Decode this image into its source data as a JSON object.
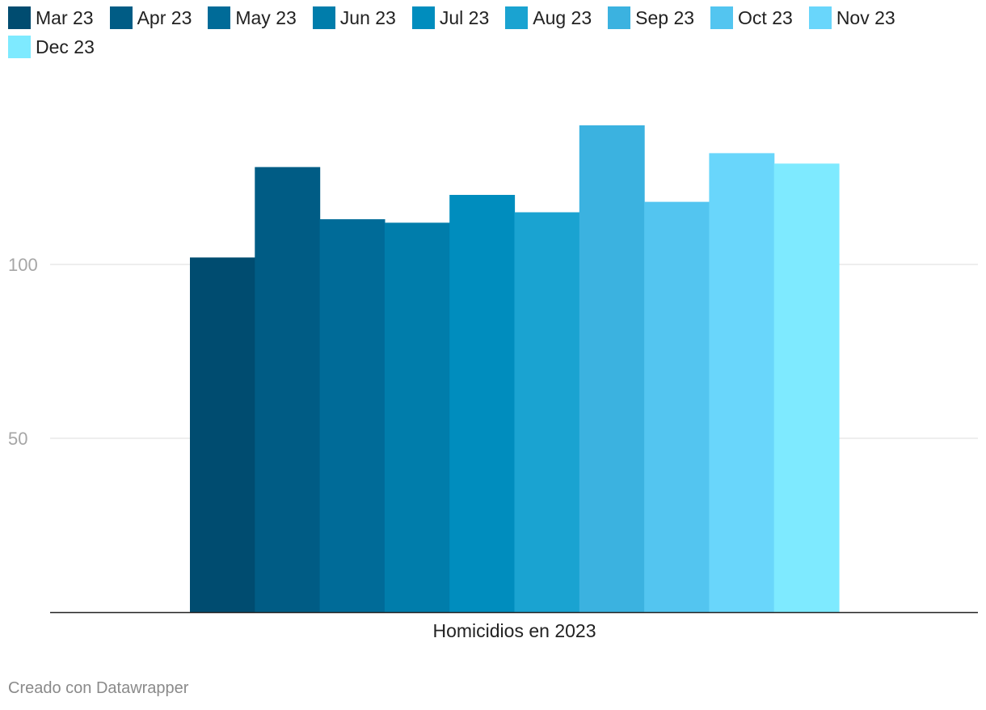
{
  "chart_data": {
    "type": "bar",
    "title": "",
    "xlabel": "",
    "ylabel": "",
    "categories": [
      "Homicidios en 2023"
    ],
    "series": [
      {
        "name": "Mar 23",
        "values": [
          102
        ],
        "color": "#004c70"
      },
      {
        "name": "Apr 23",
        "values": [
          128
        ],
        "color": "#005c85"
      },
      {
        "name": "May 23",
        "values": [
          113
        ],
        "color": "#006b98"
      },
      {
        "name": "Jun 23",
        "values": [
          112
        ],
        "color": "#007dab"
      },
      {
        "name": "Jul 23",
        "values": [
          120
        ],
        "color": "#008dbe"
      },
      {
        "name": "Aug 23",
        "values": [
          115
        ],
        "color": "#1aa3d1"
      },
      {
        "name": "Sep 23",
        "values": [
          140
        ],
        "color": "#3bb2e0"
      },
      {
        "name": "Oct 23",
        "values": [
          118
        ],
        "color": "#53c5f0"
      },
      {
        "name": "Nov 23",
        "values": [
          132
        ],
        "color": "#69d6fb"
      },
      {
        "name": "Dec 23",
        "values": [
          129
        ],
        "color": "#7eeaff"
      }
    ],
    "yticks": [
      50,
      100
    ],
    "ylim": [
      0,
      150
    ],
    "grid": true,
    "legend": "top-left"
  },
  "footer": {
    "credit": "Creado con Datawrapper"
  }
}
